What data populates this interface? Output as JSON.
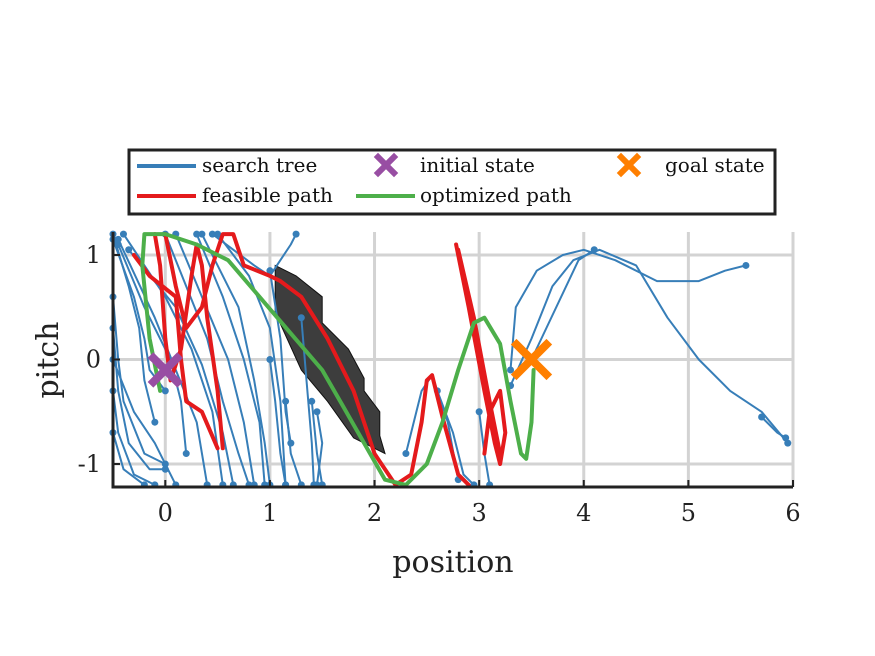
{
  "chart_data": {
    "type": "line",
    "xlabel": "position",
    "ylabel": "pitch",
    "xlim": [
      -0.5,
      6
    ],
    "ylim": [
      -1.22,
      1.22
    ],
    "xticks": [
      0,
      1,
      2,
      3,
      4,
      5,
      6
    ],
    "yticks": [
      -1,
      0,
      1
    ],
    "xtick_labels": [
      "0",
      "1",
      "2",
      "3",
      "4",
      "5",
      "6"
    ],
    "ytick_labels": [
      "-1",
      "0",
      "1"
    ],
    "grid": true,
    "legend_position": "above-plot",
    "legend": [
      {
        "label": "search tree",
        "kind": "line",
        "color": "#377eb8"
      },
      {
        "label": "initial state",
        "kind": "cross",
        "color": "#984ea3"
      },
      {
        "label": "goal state",
        "kind": "cross",
        "color": "#ff7f00"
      },
      {
        "label": "feasible path",
        "kind": "line",
        "color": "#e41a1c"
      },
      {
        "label": "optimized path",
        "kind": "line",
        "color": "#4daf4a"
      }
    ],
    "colors": {
      "search_tree": "#377eb8",
      "feasible_path": "#e41a1c",
      "optimized_path": "#4daf4a",
      "initial_state": "#984ea3",
      "goal_state": "#ff7f00",
      "obstacle": "#3d3d3d"
    },
    "initial_state": {
      "x": 0.0,
      "y": -0.1
    },
    "goal_state": {
      "x": 3.5,
      "y": 0.0
    },
    "obstacle": [
      [
        1.05,
        0.9
      ],
      [
        1.25,
        0.8
      ],
      [
        1.5,
        0.6
      ],
      [
        1.5,
        0.35
      ],
      [
        1.75,
        0.1
      ],
      [
        1.9,
        -0.18
      ],
      [
        1.9,
        -0.3
      ],
      [
        2.05,
        -0.5
      ],
      [
        2.05,
        -0.73
      ],
      [
        2.1,
        -0.9
      ],
      [
        1.8,
        -0.75
      ],
      [
        1.55,
        -0.4
      ],
      [
        1.3,
        -0.1
      ],
      [
        1.05,
        0.45
      ]
    ],
    "search_tree": [
      [
        [
          -0.5,
          1.15
        ],
        [
          -0.3,
          0.6
        ],
        [
          -0.2,
          0.2
        ],
        [
          -0.15,
          -0.1
        ],
        [
          0.0,
          -0.3
        ]
      ],
      [
        [
          -0.5,
          1.2
        ],
        [
          -0.35,
          0.7
        ],
        [
          -0.25,
          0.3
        ],
        [
          -0.2,
          -0.2
        ],
        [
          -0.1,
          -0.6
        ]
      ],
      [
        [
          -0.45,
          1.1
        ],
        [
          -0.2,
          0.5
        ],
        [
          0.05,
          0.0
        ],
        [
          0.15,
          -0.4
        ],
        [
          0.2,
          -0.9
        ]
      ],
      [
        [
          -0.45,
          1.15
        ],
        [
          -0.1,
          0.4
        ],
        [
          0.1,
          -0.1
        ],
        [
          0.3,
          -0.6
        ],
        [
          0.4,
          -1.2
        ]
      ],
      [
        [
          -0.4,
          1.2
        ],
        [
          0.0,
          0.6
        ],
        [
          0.25,
          0.1
        ],
        [
          0.45,
          -0.5
        ],
        [
          0.55,
          -1.2
        ]
      ],
      [
        [
          -0.35,
          1.05
        ],
        [
          0.1,
          0.5
        ],
        [
          0.35,
          -0.05
        ],
        [
          0.55,
          -0.7
        ],
        [
          0.65,
          -1.2
        ]
      ],
      [
        [
          -0.5,
          0.6
        ],
        [
          -0.45,
          0.0
        ],
        [
          -0.4,
          -0.4
        ],
        [
          -0.2,
          -0.9
        ],
        [
          0.0,
          -1.0
        ]
      ],
      [
        [
          -0.5,
          0.3
        ],
        [
          -0.45,
          -0.3
        ],
        [
          -0.35,
          -0.8
        ],
        [
          -0.15,
          -1.05
        ],
        [
          0.0,
          -1.05
        ]
      ],
      [
        [
          -0.5,
          -0.3
        ],
        [
          -0.45,
          -0.7
        ],
        [
          -0.3,
          -1.1
        ],
        [
          -0.1,
          -1.2
        ]
      ],
      [
        [
          -0.5,
          -0.7
        ],
        [
          -0.4,
          -1.05
        ],
        [
          -0.2,
          -1.2
        ]
      ],
      [
        [
          -0.5,
          0.0
        ],
        [
          -0.3,
          -0.5
        ],
        [
          -0.1,
          -0.8
        ],
        [
          0.1,
          -1.2
        ]
      ],
      [
        [
          0.0,
          1.2
        ],
        [
          0.2,
          0.7
        ],
        [
          0.4,
          0.2
        ],
        [
          0.55,
          -0.4
        ],
        [
          0.7,
          -0.9
        ],
        [
          0.8,
          -1.2
        ]
      ],
      [
        [
          0.1,
          1.2
        ],
        [
          0.35,
          0.6
        ],
        [
          0.6,
          0.0
        ],
        [
          0.75,
          -0.6
        ],
        [
          0.85,
          -1.2
        ]
      ],
      [
        [
          0.3,
          1.2
        ],
        [
          0.55,
          0.6
        ],
        [
          0.75,
          0.0
        ],
        [
          0.9,
          -0.6
        ],
        [
          0.95,
          -1.2
        ]
      ],
      [
        [
          0.35,
          1.2
        ],
        [
          0.7,
          0.5
        ],
        [
          0.85,
          -0.2
        ],
        [
          0.95,
          -0.8
        ],
        [
          1.0,
          -1.2
        ]
      ],
      [
        [
          0.5,
          1.2
        ],
        [
          0.8,
          0.8
        ],
        [
          1.0,
          0.3
        ],
        [
          1.1,
          -0.4
        ],
        [
          1.15,
          -1.2
        ]
      ],
      [
        [
          0.45,
          1.2
        ],
        [
          0.85,
          0.9
        ],
        [
          1.0,
          0.8
        ],
        [
          1.2,
          1.1
        ],
        [
          1.25,
          1.2
        ]
      ],
      [
        [
          1.0,
          0.85
        ],
        [
          1.1,
          0.2
        ],
        [
          1.15,
          -0.5
        ],
        [
          1.2,
          -0.8
        ]
      ],
      [
        [
          1.15,
          -0.4
        ],
        [
          1.2,
          -0.9
        ],
        [
          1.3,
          -1.2
        ]
      ],
      [
        [
          1.3,
          0.4
        ],
        [
          1.35,
          -0.2
        ],
        [
          1.4,
          -0.8
        ],
        [
          1.42,
          -1.2
        ]
      ],
      [
        [
          1.4,
          -0.4
        ],
        [
          1.45,
          -0.9
        ],
        [
          1.5,
          -1.2
        ]
      ],
      [
        [
          1.45,
          -0.5
        ],
        [
          1.5,
          -0.8
        ],
        [
          1.45,
          -1.2
        ]
      ],
      [
        [
          1.0,
          0.0
        ],
        [
          1.05,
          -0.4
        ],
        [
          1.1,
          -0.9
        ],
        [
          1.15,
          -1.2
        ]
      ],
      [
        [
          2.3,
          -0.9
        ],
        [
          2.45,
          -0.3
        ],
        [
          2.55,
          -0.15
        ],
        [
          2.7,
          -0.6
        ],
        [
          2.8,
          -1.15
        ]
      ],
      [
        [
          2.6,
          -0.3
        ],
        [
          2.75,
          -0.7
        ],
        [
          2.85,
          -1.1
        ],
        [
          2.95,
          -1.2
        ]
      ],
      [
        [
          3.0,
          -0.5
        ],
        [
          3.05,
          -0.9
        ],
        [
          3.1,
          -1.2
        ]
      ],
      [
        [
          3.3,
          -0.1
        ],
        [
          3.35,
          0.5
        ],
        [
          3.55,
          0.85
        ],
        [
          3.8,
          1.0
        ],
        [
          4.0,
          1.05
        ],
        [
          4.3,
          0.95
        ],
        [
          4.7,
          0.75
        ],
        [
          5.1,
          0.75
        ],
        [
          5.35,
          0.85
        ],
        [
          5.55,
          0.9
        ]
      ],
      [
        [
          3.3,
          -0.25
        ],
        [
          3.5,
          0.2
        ],
        [
          3.7,
          0.7
        ],
        [
          3.9,
          0.95
        ],
        [
          4.15,
          1.05
        ],
        [
          4.5,
          0.9
        ],
        [
          4.8,
          0.4
        ],
        [
          5.1,
          0.0
        ],
        [
          5.4,
          -0.3
        ],
        [
          5.7,
          -0.5
        ],
        [
          5.95,
          -0.8
        ]
      ],
      [
        [
          3.5,
          0.0
        ],
        [
          3.95,
          0.95
        ],
        [
          4.1,
          1.05
        ]
      ],
      [
        [
          5.7,
          -0.55
        ],
        [
          5.85,
          -0.7
        ],
        [
          5.93,
          -0.75
        ]
      ]
    ],
    "feasible_path": [
      [
        [
          -0.1,
          1.2
        ],
        [
          -0.05,
          0.9
        ],
        [
          0.0,
          0.2
        ],
        [
          0.05,
          -0.2
        ],
        [
          0.15,
          0.1
        ],
        [
          0.25,
          0.8
        ],
        [
          0.3,
          1.1
        ],
        [
          0.35,
          0.9
        ],
        [
          0.4,
          0.4
        ],
        [
          0.5,
          -0.3
        ],
        [
          0.55,
          -0.85
        ]
      ],
      [
        [
          0.0,
          1.2
        ],
        [
          0.1,
          0.7
        ],
        [
          0.2,
          0.3
        ],
        [
          0.35,
          0.5
        ],
        [
          0.45,
          0.9
        ],
        [
          0.55,
          1.2
        ],
        [
          0.65,
          1.2
        ],
        [
          0.75,
          0.9
        ],
        [
          1.0,
          0.8
        ],
        [
          1.1,
          0.75
        ],
        [
          1.3,
          0.6
        ],
        [
          1.55,
          0.2
        ],
        [
          1.8,
          -0.3
        ],
        [
          2.0,
          -0.9
        ],
        [
          2.2,
          -1.2
        ],
        [
          2.35,
          -1.1
        ],
        [
          2.45,
          -0.6
        ],
        [
          2.5,
          -0.2
        ],
        [
          2.55,
          -0.15
        ],
        [
          2.65,
          -0.55
        ],
        [
          2.8,
          -1.1
        ],
        [
          2.9,
          -1.2
        ]
      ],
      [
        [
          -0.3,
          1.0
        ],
        [
          -0.15,
          0.8
        ],
        [
          0.1,
          0.6
        ],
        [
          0.15,
          0.0
        ],
        [
          0.2,
          -0.4
        ],
        [
          0.35,
          -0.5
        ],
        [
          0.5,
          -0.85
        ]
      ],
      [
        [
          2.78,
          1.1
        ],
        [
          2.9,
          0.5
        ],
        [
          3.05,
          -0.3
        ],
        [
          3.15,
          -0.8
        ],
        [
          3.2,
          -1.0
        ],
        [
          3.25,
          -0.7
        ],
        [
          3.2,
          -0.3
        ],
        [
          3.1,
          -0.5
        ],
        [
          3.05,
          -0.9
        ]
      ],
      [
        [
          2.8,
          1.05
        ],
        [
          2.95,
          0.4
        ],
        [
          3.1,
          -0.4
        ],
        [
          3.2,
          -0.9
        ]
      ]
    ],
    "optimized_path": [
      [
        [
          -0.05,
          -0.3
        ],
        [
          -0.15,
          0.2
        ],
        [
          -0.22,
          0.9
        ],
        [
          -0.2,
          1.2
        ],
        [
          0.0,
          1.2
        ],
        [
          0.3,
          1.1
        ],
        [
          0.6,
          0.95
        ],
        [
          0.9,
          0.6
        ],
        [
          1.2,
          0.25
        ],
        [
          1.5,
          -0.1
        ],
        [
          1.7,
          -0.45
        ],
        [
          1.9,
          -0.8
        ],
        [
          2.1,
          -1.15
        ],
        [
          2.3,
          -1.2
        ],
        [
          2.5,
          -1.0
        ],
        [
          2.65,
          -0.6
        ],
        [
          2.8,
          -0.1
        ],
        [
          2.95,
          0.35
        ],
        [
          3.05,
          0.4
        ],
        [
          3.2,
          0.15
        ],
        [
          3.3,
          -0.4
        ],
        [
          3.4,
          -0.9
        ],
        [
          3.45,
          -0.95
        ],
        [
          3.5,
          -0.6
        ],
        [
          3.52,
          -0.1
        ]
      ]
    ]
  }
}
